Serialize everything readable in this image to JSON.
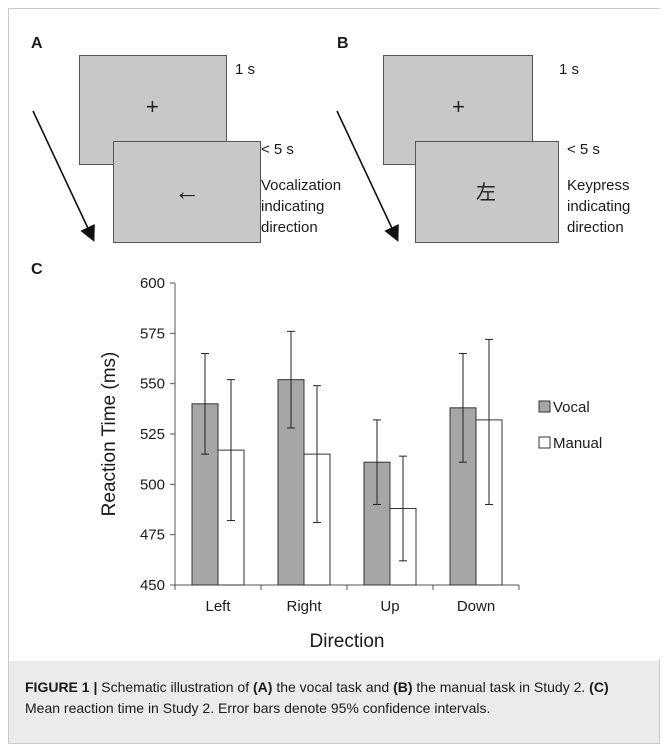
{
  "panels": {
    "A": {
      "letter": "A",
      "fixation": "+",
      "fixation_time": "1 s",
      "stimulus": "←",
      "stimulus_time": "< 5 s",
      "response_lines": [
        "Vocalization",
        "indicating",
        "direction"
      ]
    },
    "B": {
      "letter": "B",
      "fixation": "+",
      "fixation_time": "1 s",
      "stimulus": "左",
      "stimulus_time": "< 5 s",
      "response_lines": [
        "Keypress",
        "indicating",
        "direction"
      ]
    },
    "C": {
      "letter": "C"
    }
  },
  "chart_data": {
    "type": "bar",
    "xlabel": "Direction",
    "ylabel": "Reaction Time (ms)",
    "ylim": [
      450,
      600
    ],
    "yticks": [
      450,
      475,
      500,
      525,
      550,
      575,
      600
    ],
    "categories": [
      "Left",
      "Right",
      "Up",
      "Down"
    ],
    "series": [
      {
        "name": "Vocal",
        "color": "#a6a6a6",
        "values": [
          540,
          552,
          511,
          538
        ],
        "error_low": [
          515,
          528,
          490,
          511
        ],
        "error_high": [
          565,
          576,
          532,
          565
        ]
      },
      {
        "name": "Manual",
        "color": "#ffffff",
        "values": [
          517,
          515,
          488,
          532
        ],
        "error_low": [
          482,
          481,
          462,
          490
        ],
        "error_high": [
          552,
          549,
          514,
          572
        ]
      }
    ],
    "legend_position": "right"
  },
  "caption": {
    "label": "FIGURE 1 |",
    "t1": " Schematic illustration of ",
    "a": "(A)",
    "t2": " the vocal task and ",
    "b": "(B)",
    "t3": " the manual task in Study 2. ",
    "c": "(C)",
    "t4": " Mean reaction time in Study 2. Error bars denote 95% confidence intervals."
  }
}
